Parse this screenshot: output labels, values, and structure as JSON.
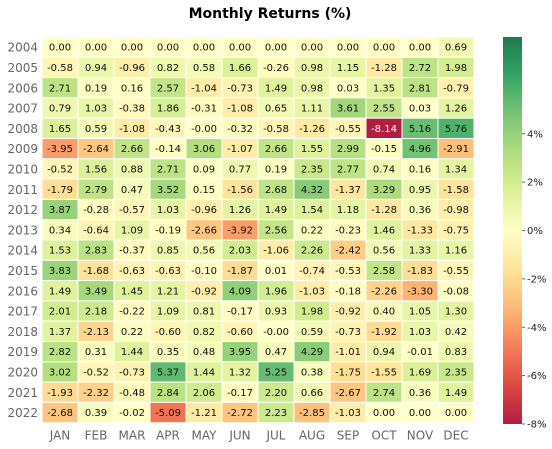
{
  "chart_data": {
    "type": "heatmap",
    "title": "Monthly Returns (%)",
    "columns": [
      "JAN",
      "FEB",
      "MAR",
      "APR",
      "MAY",
      "JUN",
      "JUL",
      "AUG",
      "SEP",
      "OCT",
      "NOV",
      "DEC"
    ],
    "rows": [
      "2004",
      "2005",
      "2006",
      "2007",
      "2008",
      "2009",
      "2010",
      "2011",
      "2012",
      "2013",
      "2014",
      "2015",
      "2016",
      "2017",
      "2018",
      "2019",
      "2020",
      "2021",
      "2022"
    ],
    "values": [
      [
        "0.00",
        "0.00",
        "0.00",
        "0.00",
        "0.00",
        "0.00",
        "0.00",
        "0.00",
        "0.00",
        "0.00",
        "0.00",
        "0.69"
      ],
      [
        "-0.58",
        "0.94",
        "-0.96",
        "0.82",
        "0.58",
        "1.66",
        "-0.26",
        "0.98",
        "1.15",
        "-1.28",
        "2.72",
        "1.98"
      ],
      [
        "2.71",
        "0.19",
        "0.16",
        "2.57",
        "-1.04",
        "-0.73",
        "1.49",
        "0.98",
        "0.03",
        "1.35",
        "2.81",
        "-0.79"
      ],
      [
        "0.79",
        "1.03",
        "-0.38",
        "1.86",
        "-0.31",
        "-1.08",
        "0.65",
        "1.11",
        "3.61",
        "2.55",
        "0.03",
        "1.26"
      ],
      [
        "1.65",
        "0.59",
        "-1.08",
        "-0.43",
        "-0.00",
        "-0.32",
        "-0.58",
        "-1.26",
        "-0.55",
        "-8.14",
        "5.16",
        "5.76"
      ],
      [
        "-3.95",
        "-2.64",
        "2.66",
        "-0.14",
        "3.06",
        "-1.07",
        "2.66",
        "1.55",
        "2.99",
        "-0.15",
        "4.96",
        "-2.91"
      ],
      [
        "-0.52",
        "1.56",
        "0.88",
        "2.71",
        "0.09",
        "0.77",
        "0.19",
        "2.35",
        "2.77",
        "0.74",
        "0.16",
        "1.34"
      ],
      [
        "-1.79",
        "2.79",
        "0.47",
        "3.52",
        "0.15",
        "-1.56",
        "2.68",
        "4.32",
        "-1.37",
        "3.29",
        "0.95",
        "-1.58"
      ],
      [
        "3.87",
        "-0.28",
        "-0.57",
        "1.03",
        "-0.96",
        "1.26",
        "1.49",
        "1.54",
        "1.18",
        "-1.28",
        "0.36",
        "-0.98"
      ],
      [
        "0.34",
        "-0.64",
        "1.09",
        "-0.19",
        "-2.66",
        "-3.92",
        "2.56",
        "0.22",
        "-0.23",
        "1.46",
        "-1.33",
        "-0.75"
      ],
      [
        "1.53",
        "2.83",
        "-0.37",
        "0.85",
        "0.56",
        "2.03",
        "-1.06",
        "2.26",
        "-2.42",
        "0.56",
        "1.33",
        "1.16"
      ],
      [
        "3.83",
        "-1.68",
        "-0.63",
        "-0.63",
        "-0.10",
        "-1.87",
        "0.01",
        "-0.74",
        "-0.53",
        "2.58",
        "-1.83",
        "-0.55"
      ],
      [
        "1.49",
        "3.49",
        "1.45",
        "1.21",
        "-0.92",
        "4.09",
        "1.96",
        "-1.03",
        "-0.18",
        "-2.26",
        "-3.30",
        "-0.08"
      ],
      [
        "2.01",
        "2.18",
        "-0.22",
        "1.09",
        "0.81",
        "-0.17",
        "0.93",
        "1.98",
        "-0.92",
        "0.40",
        "1.05",
        "1.30"
      ],
      [
        "1.37",
        "-2.13",
        "0.22",
        "-0.60",
        "0.82",
        "-0.60",
        "-0.00",
        "0.59",
        "-0.73",
        "-1.92",
        "1.03",
        "0.42"
      ],
      [
        "2.82",
        "0.31",
        "1.44",
        "0.35",
        "0.48",
        "3.95",
        "0.47",
        "4.29",
        "-1.01",
        "0.94",
        "-0.01",
        "0.83"
      ],
      [
        "3.02",
        "-0.52",
        "-0.73",
        "5.37",
        "1.44",
        "1.32",
        "5.25",
        "0.38",
        "-1.75",
        "-1.55",
        "1.69",
        "2.35"
      ],
      [
        "-1.93",
        "-2.32",
        "-0.48",
        "2.84",
        "2.06",
        "-0.17",
        "2.20",
        "0.66",
        "-2.67",
        "2.74",
        "0.36",
        "1.49"
      ],
      [
        "-2.68",
        "0.39",
        "-0.02",
        "-5.09",
        "-1.21",
        "-2.72",
        "2.23",
        "-2.85",
        "-1.03",
        "0.00",
        "0.00",
        "0.00"
      ]
    ],
    "color_scale": {
      "colormap": "RdYlGn",
      "vmin": -8,
      "vmax": 8,
      "ticks": [
        "4%",
        "2%",
        "0%",
        "-2%",
        "-4%",
        "-6%",
        "-8%"
      ],
      "tick_values": [
        4,
        2,
        0,
        -2,
        -4,
        -6,
        -8
      ]
    },
    "xlabel": "",
    "ylabel": "",
    "grid": true
  }
}
